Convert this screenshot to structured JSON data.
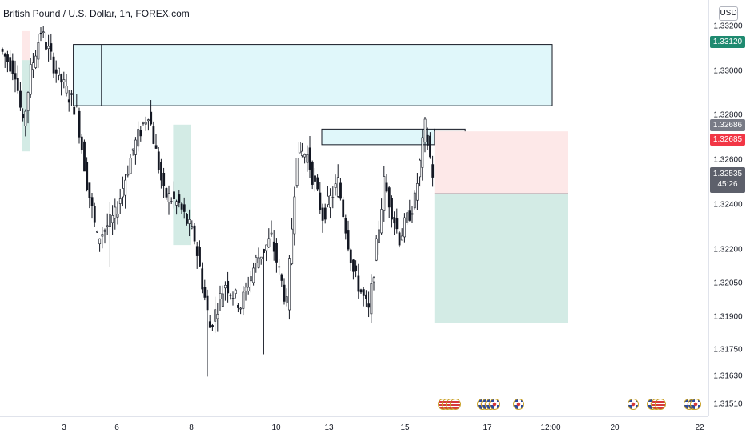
{
  "symbol": {
    "title": "British Pound / U.S. Dollar, 1h, FOREX.com"
  },
  "price_axis": {
    "currency": "USD",
    "ticks": [
      "1.33200",
      "1.33000",
      "1.32800",
      "1.32600",
      "1.32400",
      "1.32200",
      "1.32050",
      "1.31900",
      "1.31750",
      "1.31630",
      "1.31510"
    ],
    "tags": {
      "upper_target": "1.33120",
      "ask": "1.32686",
      "bid": "1.32685",
      "last": "1.32535",
      "countdown": "45:26"
    }
  },
  "time_axis": {
    "labels": [
      "3",
      "6",
      "8",
      "10",
      "13",
      "15",
      "17",
      "12:00",
      "20",
      "22"
    ]
  },
  "events": {
    "groups": [
      {
        "flags": [
          "us",
          "us",
          "us",
          "us"
        ]
      },
      {
        "flags": [
          "uk",
          "uk",
          "uk",
          "uk"
        ]
      },
      {
        "flags": [
          "uk"
        ]
      },
      {
        "flags": [
          "uk"
        ]
      },
      {
        "flags": [
          "uk",
          "us",
          "us"
        ]
      },
      {
        "flags": [
          "uk",
          "uk"
        ]
      },
      {
        "flags": [
          "uk"
        ]
      }
    ]
  },
  "colors": {
    "up": "#131722",
    "down": "#131722",
    "zone_fill": "#e0f7fa",
    "stop_fill": "#fde8e8",
    "target_fill": "#d3ebe5",
    "tag_green": "#1f8a70",
    "tag_red": "#f23645"
  },
  "chart_data": {
    "type": "candlestick",
    "title": "British Pound / U.S. Dollar, 1h, FOREX.com",
    "ylim": [
      1.315,
      1.3325
    ],
    "x_tick_labels": [
      "3",
      "6",
      "8",
      "10",
      "13",
      "15",
      "17",
      "12:00",
      "20",
      "22"
    ],
    "anchors": [
      {
        "i": 0,
        "p": 1.331
      },
      {
        "i": 6,
        "p": 1.33
      },
      {
        "i": 9,
        "p": 1.3275
      },
      {
        "i": 12,
        "p": 1.33
      },
      {
        "i": 16,
        "p": 1.3318
      },
      {
        "i": 22,
        "p": 1.33
      },
      {
        "i": 30,
        "p": 1.3282
      },
      {
        "i": 34,
        "p": 1.325
      },
      {
        "i": 38,
        "p": 1.3225
      },
      {
        "i": 45,
        "p": 1.3235
      },
      {
        "i": 52,
        "p": 1.3265
      },
      {
        "i": 58,
        "p": 1.3282
      },
      {
        "i": 64,
        "p": 1.3245
      },
      {
        "i": 70,
        "p": 1.324
      },
      {
        "i": 76,
        "p": 1.3225
      },
      {
        "i": 82,
        "p": 1.3185
      },
      {
        "i": 88,
        "p": 1.3205
      },
      {
        "i": 94,
        "p": 1.3195
      },
      {
        "i": 100,
        "p": 1.3215
      },
      {
        "i": 106,
        "p": 1.3225
      },
      {
        "i": 112,
        "p": 1.3195
      },
      {
        "i": 116,
        "p": 1.3265
      },
      {
        "i": 120,
        "p": 1.3262
      },
      {
        "i": 126,
        "p": 1.3235
      },
      {
        "i": 132,
        "p": 1.325
      },
      {
        "i": 138,
        "p": 1.321
      },
      {
        "i": 144,
        "p": 1.3192
      },
      {
        "i": 150,
        "p": 1.325
      },
      {
        "i": 156,
        "p": 1.3225
      },
      {
        "i": 162,
        "p": 1.3242
      },
      {
        "i": 166,
        "p": 1.3275
      },
      {
        "i": 169,
        "p": 1.3254
      }
    ],
    "low_spikes": [
      {
        "i": 42,
        "p": 1.3212
      },
      {
        "i": 80,
        "p": 1.3163
      },
      {
        "i": 102,
        "p": 1.3173
      }
    ],
    "zones": [
      {
        "label": "supply-zone-upper",
        "price_top": 1.3312,
        "price_bottom": 1.32845
      },
      {
        "label": "supply-zone-small",
        "price_top": 1.3274,
        "price_bottom": 1.3267
      }
    ],
    "position": {
      "entry": 1.3245,
      "stop": 1.3273,
      "target": 1.3187
    }
  }
}
